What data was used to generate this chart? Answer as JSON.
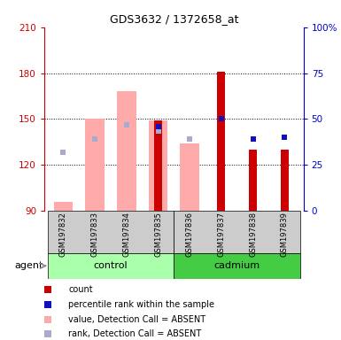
{
  "title": "GDS3632 / 1372658_at",
  "samples": [
    "GSM197832",
    "GSM197833",
    "GSM197834",
    "GSM197835",
    "GSM197836",
    "GSM197837",
    "GSM197838",
    "GSM197839"
  ],
  "groups": {
    "control": [
      0,
      1,
      2,
      3
    ],
    "cadmium": [
      4,
      5,
      6,
      7
    ]
  },
  "ylim_left": [
    90,
    210
  ],
  "ylim_right": [
    0,
    100
  ],
  "yticks_left": [
    90,
    120,
    150,
    180,
    210
  ],
  "yticks_right": [
    0,
    25,
    50,
    75,
    100
  ],
  "yticklabels_left": [
    "90",
    "120",
    "150",
    "180",
    "210"
  ],
  "yticklabels_right": [
    "0",
    "25",
    "50",
    "75",
    "100%"
  ],
  "bar_bottom": 90,
  "pink_bar_values": [
    96,
    150,
    168,
    149,
    134,
    null,
    null,
    null
  ],
  "red_bar_values": [
    null,
    null,
    null,
    149,
    null,
    181,
    130,
    130
  ],
  "lightblue_sq_values": [
    128,
    137,
    146,
    142,
    137,
    null,
    null,
    null
  ],
  "blue_sq_values": [
    null,
    null,
    null,
    145,
    null,
    150,
    137,
    138
  ],
  "red_color": "#cc0000",
  "blue_color": "#1111bb",
  "pink_color": "#ffaaaa",
  "lightblue_color": "#aaaacc",
  "left_axis_color": "#cc0000",
  "right_axis_color": "#0000cc",
  "control_green": "#aaffaa",
  "cadmium_green": "#44cc44",
  "sample_bg": "#cccccc",
  "legend_items": [
    {
      "color": "#cc0000",
      "label": "count"
    },
    {
      "color": "#1111bb",
      "label": "percentile rank within the sample"
    },
    {
      "color": "#ffaaaa",
      "label": "value, Detection Call = ABSENT"
    },
    {
      "color": "#aaaacc",
      "label": "rank, Detection Call = ABSENT"
    }
  ]
}
